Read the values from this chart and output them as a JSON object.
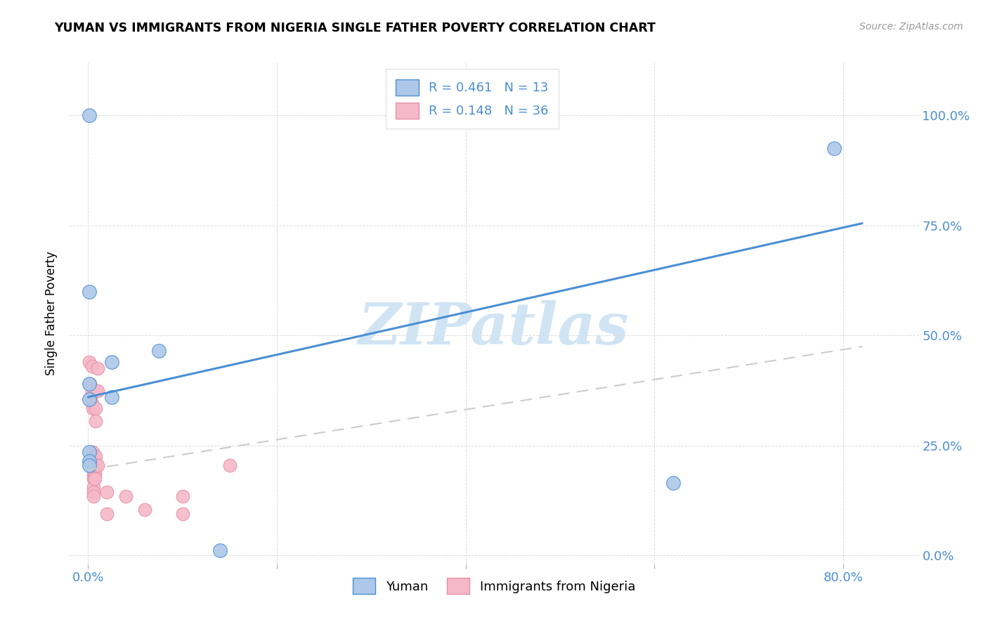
{
  "title": "YUMAN VS IMMIGRANTS FROM NIGERIA SINGLE FATHER POVERTY CORRELATION CHART",
  "source": "Source: ZipAtlas.com",
  "ylabel": "Single Father Poverty",
  "xlim": [
    -0.02,
    0.88
  ],
  "ylim": [
    -0.02,
    1.12
  ],
  "yuman_color": "#adc8e8",
  "nigeria_color": "#f5b8c8",
  "line_blue": "#4a8fd4",
  "line_pink": "#e890a8",
  "watermark_color": "#d0e4f4",
  "watermark": "ZIPatlas",
  "yuman_points": [
    [
      0.001,
      1.0
    ],
    [
      0.001,
      0.6
    ],
    [
      0.001,
      0.39
    ],
    [
      0.001,
      0.355
    ],
    [
      0.001,
      0.235
    ],
    [
      0.001,
      0.215
    ],
    [
      0.001,
      0.205
    ],
    [
      0.025,
      0.44
    ],
    [
      0.025,
      0.36
    ],
    [
      0.075,
      0.465
    ],
    [
      0.14,
      0.012
    ],
    [
      0.62,
      0.165
    ],
    [
      0.79,
      0.925
    ]
  ],
  "nigeria_points": [
    [
      0.001,
      0.44
    ],
    [
      0.002,
      0.39
    ],
    [
      0.003,
      0.36
    ],
    [
      0.004,
      0.43
    ],
    [
      0.004,
      0.375
    ],
    [
      0.004,
      0.345
    ],
    [
      0.005,
      0.335
    ],
    [
      0.005,
      0.235
    ],
    [
      0.005,
      0.225
    ],
    [
      0.005,
      0.215
    ],
    [
      0.005,
      0.205
    ],
    [
      0.006,
      0.195
    ],
    [
      0.006,
      0.185
    ],
    [
      0.006,
      0.175
    ],
    [
      0.006,
      0.155
    ],
    [
      0.006,
      0.145
    ],
    [
      0.006,
      0.135
    ],
    [
      0.007,
      0.215
    ],
    [
      0.007,
      0.195
    ],
    [
      0.007,
      0.185
    ],
    [
      0.007,
      0.175
    ],
    [
      0.008,
      0.375
    ],
    [
      0.008,
      0.335
    ],
    [
      0.008,
      0.305
    ],
    [
      0.008,
      0.225
    ],
    [
      0.008,
      0.205
    ],
    [
      0.01,
      0.425
    ],
    [
      0.01,
      0.375
    ],
    [
      0.01,
      0.205
    ],
    [
      0.02,
      0.145
    ],
    [
      0.02,
      0.095
    ],
    [
      0.04,
      0.135
    ],
    [
      0.06,
      0.105
    ],
    [
      0.1,
      0.135
    ],
    [
      0.1,
      0.095
    ],
    [
      0.15,
      0.205
    ]
  ],
  "blue_line_x": [
    0.0,
    0.82
  ],
  "blue_line_y": [
    0.36,
    0.755
  ],
  "pink_line_x": [
    0.0,
    0.82
  ],
  "pink_line_y": [
    0.195,
    0.475
  ],
  "x_tick_positions": [
    0.0,
    0.2,
    0.4,
    0.6,
    0.8
  ],
  "x_tick_labels": [
    "0.0%",
    "",
    "",
    "",
    "80.0%"
  ],
  "y_tick_positions": [
    0.0,
    0.25,
    0.5,
    0.75,
    1.0
  ],
  "y_tick_labels": [
    "0.0%",
    "25.0%",
    "50.0%",
    "75.0%",
    "100.0%"
  ],
  "legend1_label": "R = 0.461   N = 13",
  "legend2_label": "R = 0.148   N = 36",
  "bottom_legend1": "Yuman",
  "bottom_legend2": "Immigrants from Nigeria"
}
